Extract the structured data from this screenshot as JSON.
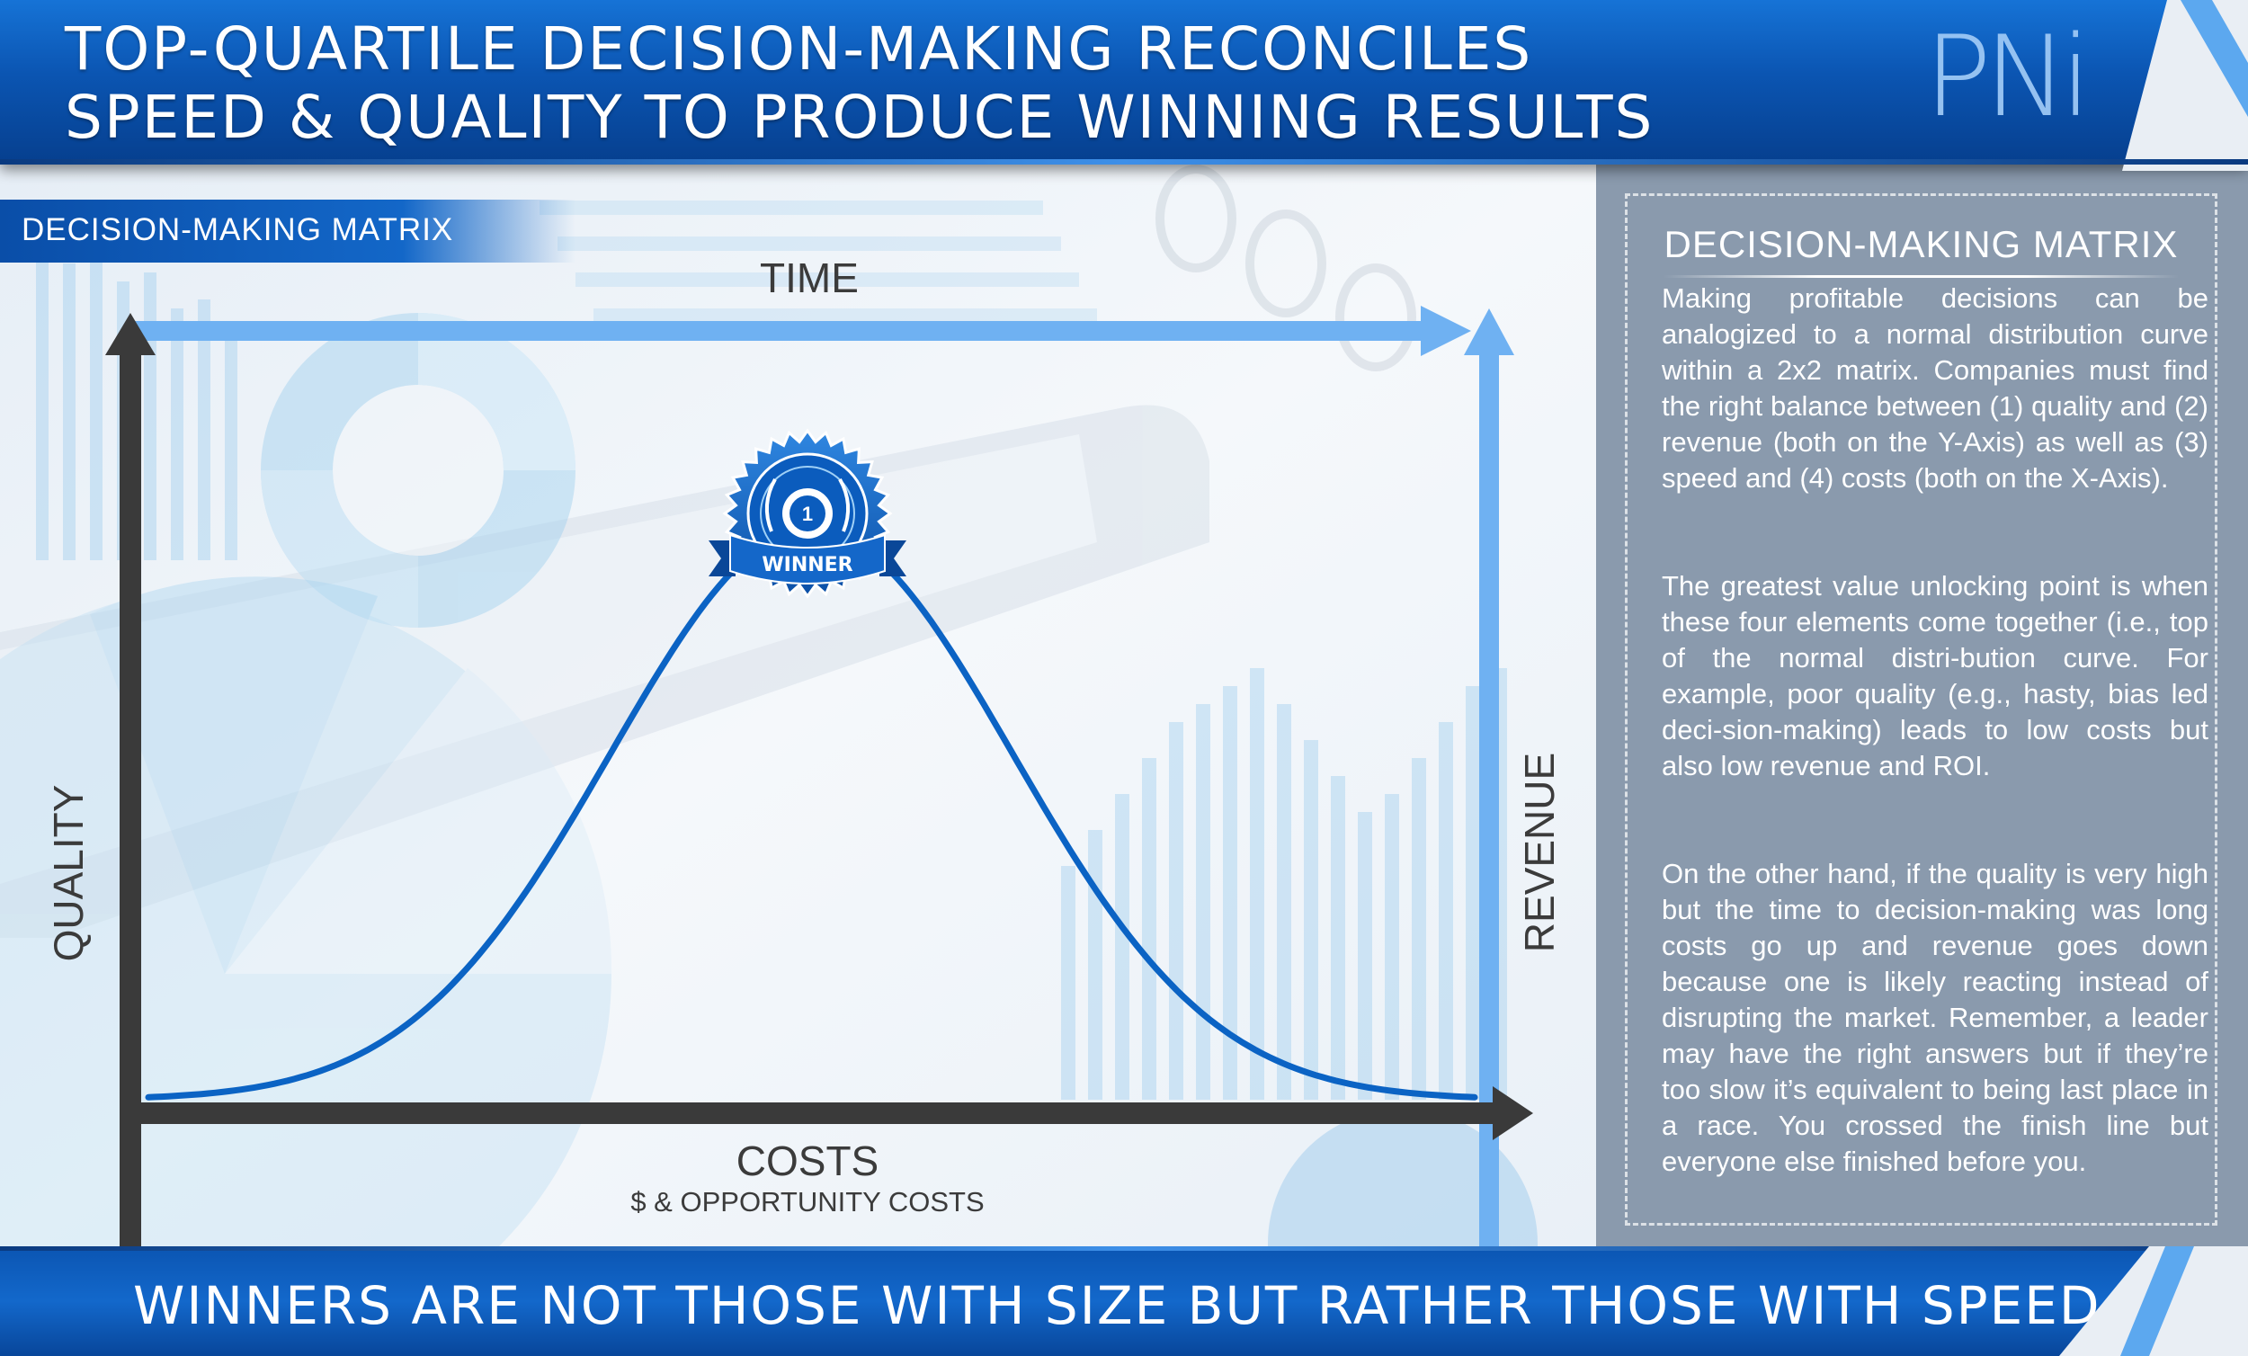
{
  "header": {
    "title_line1": "TOP-QUARTILE DECISION-MAKING RECONCILES",
    "title_line2": "SPEED & QUALITY TO PRODUCE WINNING RESULTS",
    "logo_text": "PNi"
  },
  "section_label": "DECISION-MAKING MATRIX",
  "diagram": {
    "top_axis_label": "TIME",
    "left_axis_label": "QUALITY",
    "right_axis_label": "REVENUE",
    "bottom_axis_label": "COSTS",
    "bottom_axis_sublabel": "$ & OPPORTUNITY COSTS",
    "badge_text": "WINNER",
    "badge_number": "1",
    "curve": "normal-distribution",
    "colors": {
      "axis_dark": "#3a3a3a",
      "axis_light": "#6fb1f2",
      "curve": "#0b63c4",
      "badge": "#0b5cbd"
    }
  },
  "panel": {
    "title": "DECISION-MAKING MATRIX",
    "paragraphs": [
      "Making profitable decisions can be analogized to a normal distribution curve within a 2x2 matrix. Companies must find the right balance between (1) quality and (2) revenue (both on the Y-Axis) as well as  (3) speed and (4) costs (both on the X-Axis).",
      "The greatest value unlocking point is when these four elements come together (i.e., top of the normal distri-bution curve. For example, poor quality (e.g., hasty, bias led deci-sion-making) leads to low costs but also low revenue and ROI.",
      "On the other hand, if the quality is very high but the time to decision-making was long costs go up and revenue goes down because one is likely reacting instead of disrupting the market. Remember, a leader may have the right answers but if they’re too slow it’s equivalent to being last place in a race. You crossed the finish line but everyone else finished before you."
    ]
  },
  "footer": {
    "tagline": "WINNERS ARE NOT THOSE WITH SIZE BUT RATHER THOSE WITH SPEED"
  },
  "colors": {
    "header_blue": "#0b55b2",
    "panel_gray": "#8a9aad",
    "text_white": "#ffffff"
  }
}
